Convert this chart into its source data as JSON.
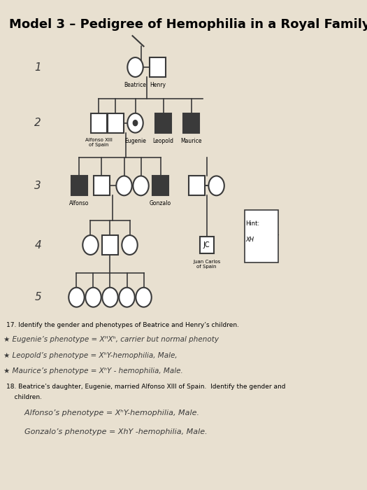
{
  "title": "Model 3 – Pedigree of Hemophilia in a Royal Family",
  "bg_color": "#e8e0d0",
  "paper_color": "#f0ece0",
  "title_fontsize": 13,
  "generation_labels": [
    "1",
    "2",
    "3",
    "4",
    "5"
  ],
  "question17": "17. Identify the gender and phenotypes of Beatrice and Henry’s children.",
  "answer17a": "★ Eugenie’s phenotype = XᴴXʰ, carrier but normal phenoty",
  "answer17b": "★ Leopold’s phenotype = XʰY-hemophilia, Male,",
  "answer17c": "★ Maurice’s phenotype = XʰY - hemophilia, Male.",
  "question18": "18. Beatrice’s daughter, Eugenie, married Alfonso XIII of Spain.  Identify the gender and",
  "question18b": "    children.",
  "answer18a": "    Alfonso’s phenotype = XʰY-hemophilia, Male.",
  "answer18b": "    Gonzalo’s phenotype = XhY -hemophilia, Male."
}
